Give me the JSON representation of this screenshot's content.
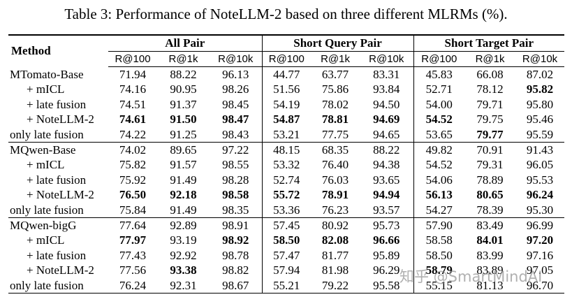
{
  "title": "Table 3: Performance of NoteLLM-2 based on three different MLRMs (%).",
  "table": {
    "header": {
      "method": "Method",
      "groups": [
        {
          "name": "All Pair",
          "columns": [
            "R@100",
            "R@1k",
            "R@10k"
          ]
        },
        {
          "name": "Short Query Pair",
          "columns": [
            "R@100",
            "R@1k",
            "R@10k"
          ]
        },
        {
          "name": "Short Target Pair",
          "columns": [
            "R@100",
            "R@1k",
            "R@10k"
          ]
        }
      ]
    },
    "groups": [
      {
        "rows": [
          {
            "method": "MTomato-Base",
            "cells": [
              "71.94",
              "88.22",
              "96.13",
              "44.77",
              "63.77",
              "83.31",
              "45.83",
              "66.08",
              "87.02"
            ]
          },
          {
            "method": "+ mICL",
            "cells": [
              "74.16",
              "90.95",
              "98.26",
              "51.56",
              "75.86",
              "93.84",
              "52.71",
              "78.12",
              {
                "text": "95.82",
                "bold": true
              }
            ]
          },
          {
            "method": "+ late fusion",
            "cells": [
              "74.51",
              "91.37",
              "98.45",
              "54.19",
              "78.02",
              "94.50",
              "54.00",
              "79.71",
              "95.80"
            ]
          },
          {
            "method": "+ NoteLLM-2",
            "cells": [
              {
                "text": "74.61",
                "bold": true
              },
              {
                "text": "91.50",
                "bold": true
              },
              {
                "text": "98.47",
                "bold": true
              },
              {
                "text": "54.87",
                "bold": true
              },
              {
                "text": "78.81",
                "bold": true
              },
              {
                "text": "94.69",
                "bold": true
              },
              {
                "text": "54.52",
                "bold": true
              },
              "79.75",
              "95.46"
            ]
          },
          {
            "method": "only late fusion",
            "cells": [
              "74.22",
              "91.25",
              "98.43",
              "53.21",
              "77.75",
              "94.65",
              "53.65",
              {
                "text": "79.77",
                "bold": true
              },
              "95.59"
            ]
          }
        ]
      },
      {
        "rows": [
          {
            "method": "MQwen-Base",
            "cells": [
              "74.02",
              "89.65",
              "97.22",
              "48.15",
              "68.35",
              "88.22",
              "49.82",
              "70.91",
              "91.43"
            ]
          },
          {
            "method": "+ mICL",
            "cells": [
              "75.82",
              "91.57",
              "98.55",
              "53.32",
              "76.40",
              "94.38",
              "54.52",
              "79.31",
              "96.05"
            ]
          },
          {
            "method": "+ late fusion",
            "cells": [
              "75.92",
              "91.49",
              "98.28",
              "52.74",
              "76.03",
              "93.65",
              "54.06",
              "78.89",
              "95.53"
            ]
          },
          {
            "method": "+ NoteLLM-2",
            "cells": [
              {
                "text": "76.50",
                "bold": true
              },
              {
                "text": "92.18",
                "bold": true
              },
              {
                "text": "98.58",
                "bold": true
              },
              {
                "text": "55.72",
                "bold": true
              },
              {
                "text": "78.91",
                "bold": true
              },
              {
                "text": "94.94",
                "bold": true
              },
              {
                "text": "56.13",
                "bold": true
              },
              {
                "text": "80.65",
                "bold": true
              },
              {
                "text": "96.24",
                "bold": true
              }
            ]
          },
          {
            "method": "only late fusion",
            "cells": [
              "75.84",
              "91.49",
              "98.35",
              "53.36",
              "76.23",
              "93.57",
              "54.27",
              "78.39",
              "95.30"
            ]
          }
        ]
      },
      {
        "rows": [
          {
            "method": "MQwen-bigG",
            "cells": [
              "77.64",
              "92.89",
              "98.91",
              "57.45",
              "80.92",
              "95.73",
              "57.90",
              "83.49",
              "96.99"
            ]
          },
          {
            "method": "+ mICL",
            "cells": [
              {
                "text": "77.97",
                "bold": true
              },
              "93.19",
              {
                "text": "98.92",
                "bold": true
              },
              {
                "text": "58.50",
                "bold": true
              },
              {
                "text": "82.08",
                "bold": true
              },
              {
                "text": "96.66",
                "bold": true
              },
              "58.58",
              {
                "text": "84.01",
                "bold": true
              },
              {
                "text": "97.20",
                "bold": true
              }
            ]
          },
          {
            "method": "+ late fusion",
            "cells": [
              "77.43",
              "92.92",
              "98.78",
              "57.47",
              "81.77",
              "95.89",
              "58.50",
              "83.99",
              "97.16"
            ]
          },
          {
            "method": "+ NoteLLM-2",
            "cells": [
              "77.56",
              {
                "text": "93.38",
                "bold": true
              },
              "98.82",
              "57.94",
              "81.98",
              "96.29",
              {
                "text": "58.79",
                "bold": true
              },
              "83.89",
              "97.05"
            ]
          },
          {
            "method": "only late fusion",
            "cells": [
              "76.24",
              "92.31",
              "98.67",
              "55.21",
              "79.22",
              "95.58",
              "55.15",
              "81.13",
              "96.70"
            ]
          }
        ]
      }
    ]
  },
  "watermark": "知乎 @SmartMindAI"
}
